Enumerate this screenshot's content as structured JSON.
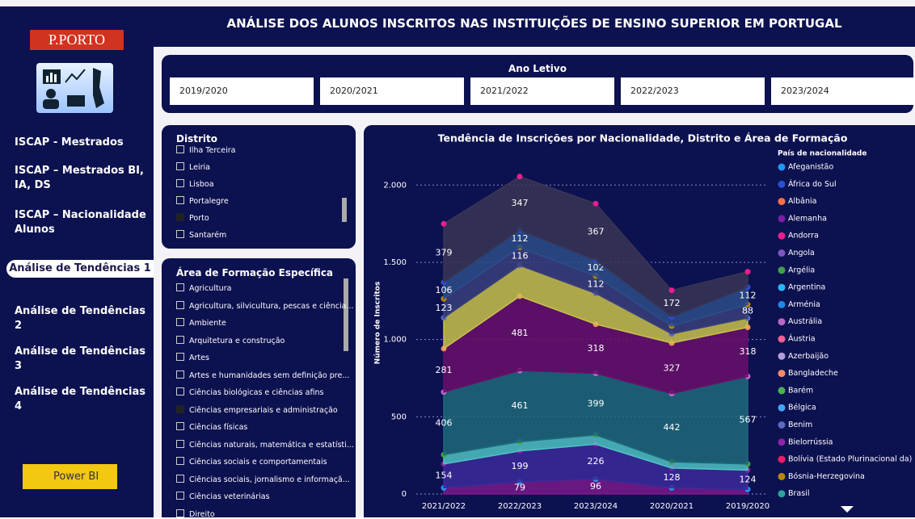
{
  "sidebar": {
    "logo": "P.PORTO",
    "nav": [
      "ISCAP - Mestrados",
      "ISCAP – Mestrados BI, IA, DS",
      "ISCAP – Nacionalidade Alunos",
      "Análise de Tendências 1",
      "Análise de Tendências 2",
      "Análise de Tendências 3",
      "Análise de Tendências 4"
    ],
    "active": 3,
    "power_bi": "Power BI"
  },
  "header": {
    "title": "ANÁLISE DOS ALUNOS INSCRITOS NAS INSTITUIÇÕES DE ENSINO SUPERIOR EM PORTUGAL"
  },
  "year_filter": {
    "title": "Ano Letivo",
    "options": [
      "2019/2020",
      "2020/2021",
      "2021/2022",
      "2022/2023",
      "2023/2024"
    ]
  },
  "district_filter": {
    "title": "Distrito",
    "options": [
      "Ilha Terceira",
      "Leiria",
      "Lisboa",
      "Portalegre",
      "Porto",
      "Santarém"
    ],
    "selected": 4
  },
  "area_filter": {
    "title": "Área de Formação Específica",
    "options": [
      "Agricultura",
      "Agricultura, silvicultura, pescas e ciência...",
      "Ambiente",
      "Arquitetura e construção",
      "Artes",
      "Artes e humanidades sem definição pre...",
      "Ciências biológicas e ciências afins",
      "Ciências empresariais e administração",
      "Ciências físicas",
      "Ciências naturais, matemática e estatísti...",
      "Ciências sociais e comportamentais",
      "Ciências sociais, jornalismo e informaçã...",
      "Ciências veterinárias",
      "Direito"
    ],
    "selected": 7
  },
  "chart_data": {
    "type": "area",
    "stacked": true,
    "title": "Tendência de Inscrições por Nacionalidade, Distrito e Área de Formação",
    "y_label": "Número de Inscritos",
    "legend_title": "País de nacionalidade",
    "categories": [
      "2021/2022",
      "2022/2023",
      "2023/2024",
      "2020/2021",
      "2019/2020"
    ],
    "legend": [
      {
        "name": "Afeganistão",
        "color": "#2196f3"
      },
      {
        "name": "África do Sul",
        "color": "#2a4fd6"
      },
      {
        "name": "Albânia",
        "color": "#ff7043"
      },
      {
        "name": "Alemanha",
        "color": "#7b1fa2"
      },
      {
        "name": "Andorra",
        "color": "#e91e8c"
      },
      {
        "name": "Angola",
        "color": "#7e57c2"
      },
      {
        "name": "Argélia",
        "color": "#43a047"
      },
      {
        "name": "Argentina",
        "color": "#29b6f6"
      },
      {
        "name": "Arménia",
        "color": "#1e88e5"
      },
      {
        "name": "Austrália",
        "color": "#ba68c8"
      },
      {
        "name": "Áustria",
        "color": "#f06292"
      },
      {
        "name": "Azerbaijão",
        "color": "#b39ddb"
      },
      {
        "name": "Bangladeche",
        "color": "#ff8a65"
      },
      {
        "name": "Barém",
        "color": "#4caf50"
      },
      {
        "name": "Bélgica",
        "color": "#42a5f5"
      },
      {
        "name": "Benim",
        "color": "#5c6bc0"
      },
      {
        "name": "Bielorrússia",
        "color": "#8e24aa"
      },
      {
        "name": "Bolívia (Estado Plurinacional da)",
        "color": "#e91e63"
      },
      {
        "name": "Bósnia-Herzegovina",
        "color": "#b8860b"
      },
      {
        "name": "Brasil",
        "color": "#26a69a"
      }
    ],
    "series": [
      {
        "color": "#7a1a8a",
        "values": [
          40,
          79,
          96,
          40,
          30
        ],
        "value_labels": [
          null,
          79,
          96,
          null,
          null
        ]
      },
      {
        "color": "#3b2a9a",
        "values": [
          154,
          199,
          226,
          128,
          124
        ],
        "value_labels": [
          154,
          199,
          226,
          128,
          124
        ]
      },
      {
        "color": "#4fc3c3",
        "values": [
          60,
          60,
          60,
          40,
          40
        ],
        "value_labels": [
          null,
          null,
          null,
          null,
          null
        ]
      },
      {
        "color": "#1e6a7a",
        "values": [
          406,
          461,
          399,
          442,
          567
        ],
        "value_labels": [
          406,
          461,
          399,
          442,
          567
        ]
      },
      {
        "color": "#6a0f6a",
        "values": [
          281,
          481,
          318,
          327,
          318
        ],
        "value_labels": [
          281,
          481,
          318,
          327,
          318
        ]
      },
      {
        "color": "#c9c24a",
        "values": [
          200,
          200,
          200,
          60,
          60
        ],
        "value_labels": [
          null,
          null,
          null,
          null,
          null
        ]
      },
      {
        "color": "#3a3f7a",
        "values": [
          123,
          116,
          112,
          50,
          88
        ],
        "value_labels": [
          123,
          116,
          112,
          null,
          88
        ]
      },
      {
        "color": "#2d4d8a",
        "values": [
          106,
          112,
          102,
          60,
          112
        ],
        "value_labels": [
          106,
          112,
          102,
          null,
          112
        ]
      },
      {
        "color": "#3a3555",
        "values": [
          379,
          347,
          367,
          172,
          100
        ],
        "value_labels": [
          379,
          347,
          367,
          172,
          null
        ]
      }
    ],
    "ylim": [
      0,
      2200
    ],
    "yticks": [
      0,
      500,
      {
        "value": 1000,
        "label": "1.000"
      },
      {
        "value": 1500,
        "label": "1.500"
      },
      {
        "value": 2000,
        "label": "2.000"
      }
    ],
    "grid": true
  }
}
